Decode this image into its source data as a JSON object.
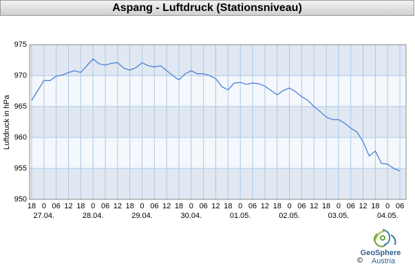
{
  "chart_data": {
    "type": "line",
    "title": "Aspang - Luftdruck (Stationsniveau)",
    "y_label": "Luftdruck in hPa",
    "x": [
      "26.04. 18",
      "26.04. 21",
      "27.04. 00",
      "27.04. 03",
      "27.04. 06",
      "27.04. 09",
      "27.04. 12",
      "27.04. 15",
      "27.04. 18",
      "27.04. 21",
      "28.04. 00",
      "28.04. 03",
      "28.04. 06",
      "28.04. 09",
      "28.04. 12",
      "28.04. 15",
      "28.04. 18",
      "28.04. 21",
      "29.04. 00",
      "29.04. 03",
      "29.04. 06",
      "29.04. 09",
      "29.04. 12",
      "29.04. 15",
      "29.04. 18",
      "29.04. 21",
      "30.04. 00",
      "30.04. 03",
      "30.04. 06",
      "30.04. 09",
      "30.04. 12",
      "30.04. 15",
      "30.04. 18",
      "30.04. 21",
      "01.05. 00",
      "01.05. 03",
      "01.05. 06",
      "01.05. 09",
      "01.05. 12",
      "01.05. 15",
      "01.05. 18",
      "01.05. 21",
      "02.05. 00",
      "02.05. 03",
      "02.05. 06",
      "02.05. 09",
      "02.05. 12",
      "02.05. 15",
      "02.05. 18",
      "02.05. 21",
      "03.05. 00",
      "03.05. 03",
      "03.05. 06",
      "03.05. 09",
      "03.05. 12",
      "03.05. 15",
      "03.05. 18",
      "03.05. 21",
      "04.05. 00",
      "04.05. 03",
      "04.05. 06"
    ],
    "series": [
      {
        "name": "Luftdruck",
        "color": "#4a7fd6",
        "values": [
          966.0,
          967.6,
          969.2,
          969.2,
          969.9,
          970.1,
          970.5,
          970.8,
          970.5,
          971.6,
          972.7,
          971.9,
          971.7,
          972.0,
          972.1,
          971.2,
          970.9,
          971.3,
          972.1,
          971.6,
          971.4,
          971.6,
          970.8,
          970.0,
          969.3,
          970.3,
          970.8,
          970.3,
          970.3,
          970.0,
          969.5,
          968.2,
          967.7,
          968.8,
          968.9,
          968.6,
          968.8,
          968.7,
          968.3,
          967.6,
          966.9,
          967.6,
          968.0,
          967.4,
          966.6,
          966.0,
          965.0,
          964.2,
          963.3,
          962.9,
          962.9,
          962.3,
          961.5,
          960.9,
          959.3,
          957.0,
          957.8,
          955.8,
          955.7,
          955.0,
          954.6
        ]
      }
    ],
    "xlim": [
      "26.04. 17",
      "04.05. 09"
    ],
    "xticks": [
      {
        "value": "26.04. 18",
        "label": "18"
      },
      {
        "value": "27.04. 00",
        "label": "0"
      },
      {
        "value": "27.04. 06",
        "label": "06"
      },
      {
        "value": "27.04. 12",
        "label": "12"
      },
      {
        "value": "27.04. 18",
        "label": "18"
      },
      {
        "value": "28.04. 00",
        "label": "0"
      },
      {
        "value": "28.04. 06",
        "label": "06"
      },
      {
        "value": "28.04. 12",
        "label": "12"
      },
      {
        "value": "28.04. 18",
        "label": "18"
      },
      {
        "value": "29.04. 00",
        "label": "0"
      },
      {
        "value": "29.04. 06",
        "label": "06"
      },
      {
        "value": "29.04. 12",
        "label": "12"
      },
      {
        "value": "29.04. 18",
        "label": "18"
      },
      {
        "value": "30.04. 00",
        "label": "0"
      },
      {
        "value": "30.04. 06",
        "label": "06"
      },
      {
        "value": "30.04. 12",
        "label": "12"
      },
      {
        "value": "30.04. 18",
        "label": "18"
      },
      {
        "value": "01.05. 00",
        "label": "0"
      },
      {
        "value": "01.05. 06",
        "label": "06"
      },
      {
        "value": "01.05. 12",
        "label": "12"
      },
      {
        "value": "01.05. 18",
        "label": "18"
      },
      {
        "value": "02.05. 00",
        "label": "0"
      },
      {
        "value": "02.05. 06",
        "label": "06"
      },
      {
        "value": "02.05. 12",
        "label": "12"
      },
      {
        "value": "02.05. 18",
        "label": "18"
      },
      {
        "value": "03.05. 00",
        "label": "0"
      },
      {
        "value": "03.05. 06",
        "label": "06"
      },
      {
        "value": "03.05. 12",
        "label": "12"
      },
      {
        "value": "03.05. 18",
        "label": "18"
      },
      {
        "value": "04.05. 00",
        "label": "0"
      },
      {
        "value": "04.05. 06",
        "label": "06"
      }
    ],
    "day_labels": [
      {
        "value": "27.04. 00",
        "label": "27.04."
      },
      {
        "value": "28.04. 00",
        "label": "28.04."
      },
      {
        "value": "29.04. 00",
        "label": "29.04."
      },
      {
        "value": "30.04. 00",
        "label": "30.04."
      },
      {
        "value": "01.05. 00",
        "label": "01.05."
      },
      {
        "value": "02.05. 00",
        "label": "02.05."
      },
      {
        "value": "03.05. 00",
        "label": "03.05."
      },
      {
        "value": "04.05. 00",
        "label": "04.05."
      }
    ],
    "ylim": [
      950,
      975
    ],
    "yticks": [
      950,
      955,
      960,
      965,
      970,
      975
    ],
    "grid": true,
    "plot_background": "#f4f7fb",
    "band_color": "#e1e8f1",
    "grid_color": "#a9c8ea"
  },
  "footer": {
    "logo": [
      "GeoSphere",
      "Austria"
    ],
    "copyright": "©"
  }
}
